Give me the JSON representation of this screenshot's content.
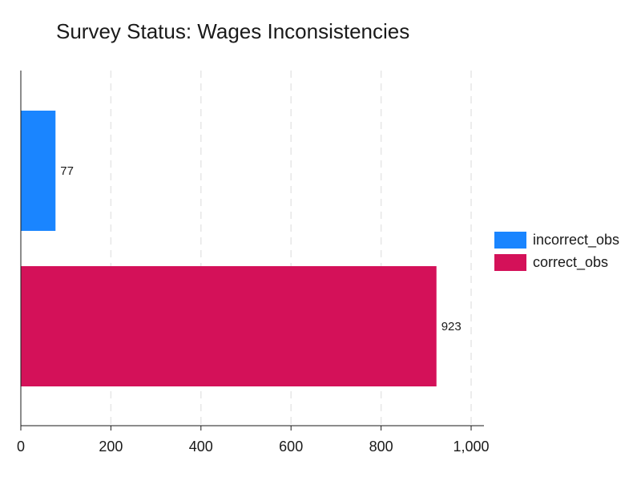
{
  "chart_data": {
    "type": "bar",
    "orientation": "horizontal",
    "title": "Survey Status: Wages Inconsistencies",
    "xlabel": "",
    "ylabel": "",
    "xlim": [
      0,
      1000
    ],
    "xticks": [
      0,
      200,
      400,
      600,
      800,
      1000
    ],
    "xtick_labels": [
      "0",
      "200",
      "400",
      "600",
      "800",
      "1,000"
    ],
    "grid": "vertical dashed",
    "legend_position": "right",
    "series": [
      {
        "name": "incorrect_obs",
        "value": 77,
        "label": "77",
        "color": "#1a85ff"
      },
      {
        "name": "correct_obs",
        "value": 923,
        "label": "923",
        "color": "#d41159"
      }
    ]
  }
}
